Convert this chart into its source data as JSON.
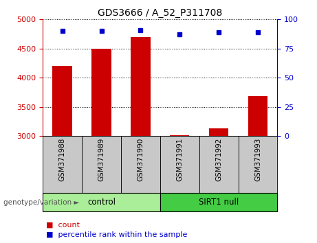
{
  "title": "GDS3666 / A_52_P311708",
  "samples": [
    "GSM371988",
    "GSM371989",
    "GSM371990",
    "GSM371991",
    "GSM371992",
    "GSM371993"
  ],
  "bar_values": [
    4200,
    4500,
    4700,
    3020,
    3130,
    3680
  ],
  "percentile_values": [
    90,
    90,
    91,
    87,
    89,
    89
  ],
  "bar_color": "#cc0000",
  "dot_color": "#0000cc",
  "ylim_left": [
    3000,
    5000
  ],
  "ylim_right": [
    0,
    100
  ],
  "yticks_left": [
    3000,
    3500,
    4000,
    4500,
    5000
  ],
  "yticks_right": [
    0,
    25,
    50,
    75,
    100
  ],
  "groups": [
    {
      "label": "control",
      "indices": [
        0,
        1,
        2
      ],
      "color": "#aaee99"
    },
    {
      "label": "SIRT1 null",
      "indices": [
        3,
        4,
        5
      ],
      "color": "#44cc44"
    }
  ],
  "group_label_prefix": "genotype/variation ►",
  "legend_count_label": "count",
  "legend_percentile_label": "percentile rank within the sample",
  "left_axis_color": "#cc0000",
  "right_axis_color": "#0000cc",
  "grid_color": "#000000",
  "tick_area_color": "#c8c8c8",
  "bar_width": 0.5,
  "baseline": 3000
}
